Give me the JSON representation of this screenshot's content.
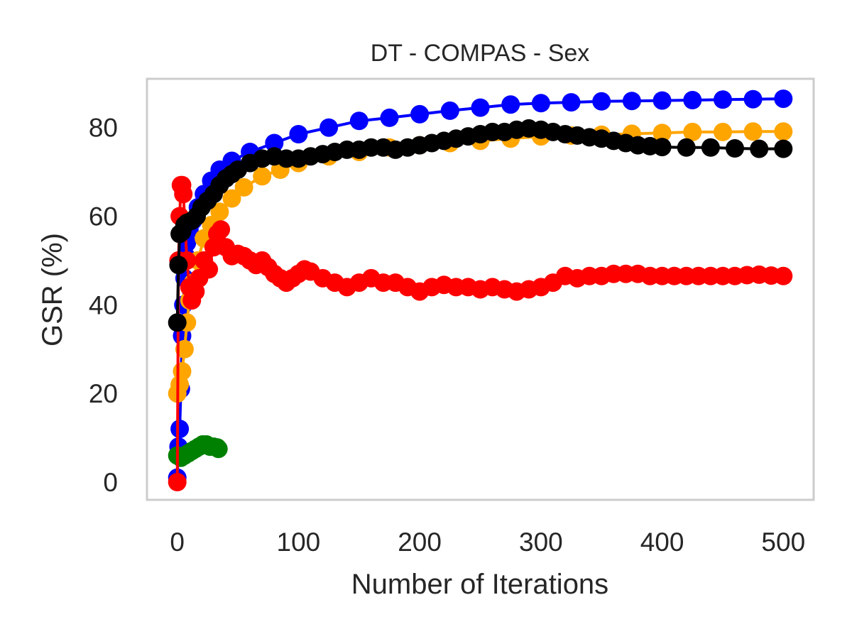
{
  "chart_data": {
    "type": "line",
    "title": "DT - COMPAS - Sex",
    "xlabel": "Number of Iterations",
    "ylabel": "GSR (%)",
    "xlim": [
      -25,
      525
    ],
    "ylim": [
      -4,
      91
    ],
    "xticks": [
      0,
      100,
      200,
      300,
      400,
      500
    ],
    "yticks": [
      0,
      20,
      40,
      60,
      80
    ],
    "grid": false,
    "legend": "none",
    "series": [
      {
        "color": "#0000ff",
        "points": [
          [
            0,
            1
          ],
          [
            1,
            8
          ],
          [
            2,
            12
          ],
          [
            3,
            21
          ],
          [
            4,
            33
          ],
          [
            5,
            40
          ],
          [
            6,
            46
          ],
          [
            7,
            51
          ],
          [
            8,
            54
          ],
          [
            10,
            57
          ],
          [
            13,
            59
          ],
          [
            17,
            62
          ],
          [
            22,
            65
          ],
          [
            28,
            68
          ],
          [
            35,
            70.5
          ],
          [
            45,
            72.5
          ],
          [
            60,
            74.5
          ],
          [
            80,
            76.5
          ],
          [
            100,
            78.5
          ],
          [
            125,
            80
          ],
          [
            150,
            81.5
          ],
          [
            175,
            82.2
          ],
          [
            200,
            83
          ],
          [
            225,
            83.8
          ],
          [
            250,
            84.5
          ],
          [
            275,
            85.2
          ],
          [
            300,
            85.5
          ],
          [
            325,
            85.7
          ],
          [
            350,
            85.9
          ],
          [
            375,
            86
          ],
          [
            400,
            86.1
          ],
          [
            425,
            86.2
          ],
          [
            450,
            86.3
          ],
          [
            475,
            86.4
          ],
          [
            500,
            86.5
          ]
        ]
      },
      {
        "color": "#ffa500",
        "points": [
          [
            0,
            20
          ],
          [
            2,
            22
          ],
          [
            4,
            25
          ],
          [
            6,
            30
          ],
          [
            8,
            36
          ],
          [
            10,
            41
          ],
          [
            13,
            45
          ],
          [
            17,
            50
          ],
          [
            22,
            55
          ],
          [
            28,
            58
          ],
          [
            35,
            61
          ],
          [
            45,
            64
          ],
          [
            55,
            66.5
          ],
          [
            70,
            69
          ],
          [
            85,
            70.5
          ],
          [
            100,
            72
          ],
          [
            125,
            73.5
          ],
          [
            150,
            74.5
          ],
          [
            175,
            75.5
          ],
          [
            200,
            76
          ],
          [
            225,
            76.5
          ],
          [
            250,
            77
          ],
          [
            275,
            77.5
          ],
          [
            300,
            78
          ],
          [
            325,
            78.2
          ],
          [
            350,
            78.4
          ],
          [
            375,
            78.6
          ],
          [
            400,
            78.8
          ],
          [
            425,
            79
          ],
          [
            450,
            79
          ],
          [
            475,
            79.1
          ],
          [
            500,
            79.1
          ]
        ]
      },
      {
        "color": "#008000",
        "points": [
          [
            0,
            6
          ],
          [
            3,
            5.5
          ],
          [
            6,
            6
          ],
          [
            9,
            6.5
          ],
          [
            12,
            7
          ],
          [
            15,
            7.5
          ],
          [
            18,
            8
          ],
          [
            21,
            8.5
          ],
          [
            24,
            8.5
          ],
          [
            27,
            8
          ],
          [
            30,
            8
          ],
          [
            33,
            7.8
          ],
          [
            34,
            7.5
          ]
        ]
      },
      {
        "color": "#ff0000",
        "points": [
          [
            0,
            0
          ],
          [
            1,
            50
          ],
          [
            2,
            60
          ],
          [
            3,
            67
          ],
          [
            4,
            67
          ],
          [
            5,
            65
          ],
          [
            8,
            50
          ],
          [
            10,
            44
          ],
          [
            12,
            41
          ],
          [
            15,
            43
          ],
          [
            18,
            46
          ],
          [
            22,
            50
          ],
          [
            26,
            48
          ],
          [
            30,
            53
          ],
          [
            33,
            56
          ],
          [
            36,
            57
          ],
          [
            40,
            53
          ],
          [
            45,
            51
          ],
          [
            50,
            51.5
          ],
          [
            55,
            51
          ],
          [
            60,
            50
          ],
          [
            65,
            49
          ],
          [
            70,
            50
          ],
          [
            75,
            48.5
          ],
          [
            80,
            47
          ],
          [
            85,
            46
          ],
          [
            90,
            45
          ],
          [
            95,
            46
          ],
          [
            100,
            47
          ],
          [
            105,
            48
          ],
          [
            110,
            47.5
          ],
          [
            120,
            46
          ],
          [
            130,
            45
          ],
          [
            140,
            44
          ],
          [
            150,
            45
          ],
          [
            160,
            46
          ],
          [
            170,
            45
          ],
          [
            180,
            45
          ],
          [
            190,
            44
          ],
          [
            200,
            43
          ],
          [
            210,
            44
          ],
          [
            220,
            44.5
          ],
          [
            230,
            44
          ],
          [
            240,
            44
          ],
          [
            250,
            43.5
          ],
          [
            260,
            44
          ],
          [
            270,
            43.5
          ],
          [
            280,
            43
          ],
          [
            290,
            43.5
          ],
          [
            300,
            44
          ],
          [
            310,
            45
          ],
          [
            320,
            46.5
          ],
          [
            330,
            46
          ],
          [
            340,
            46.5
          ],
          [
            350,
            46.5
          ],
          [
            360,
            47
          ],
          [
            370,
            47
          ],
          [
            380,
            47
          ],
          [
            390,
            46.5
          ],
          [
            400,
            46.5
          ],
          [
            410,
            46.5
          ],
          [
            420,
            46.5
          ],
          [
            430,
            46.5
          ],
          [
            440,
            46.5
          ],
          [
            450,
            46.5
          ],
          [
            460,
            46.5
          ],
          [
            470,
            46.7
          ],
          [
            480,
            46.8
          ],
          [
            490,
            46.6
          ],
          [
            500,
            46.5
          ]
        ]
      },
      {
        "color": "#000000",
        "points": [
          [
            0,
            36
          ],
          [
            1,
            49
          ],
          [
            2,
            56
          ],
          [
            4,
            56.5
          ],
          [
            6,
            58
          ],
          [
            8,
            58.5
          ],
          [
            12,
            59
          ],
          [
            16,
            60
          ],
          [
            20,
            62
          ],
          [
            25,
            63.5
          ],
          [
            30,
            65
          ],
          [
            35,
            67
          ],
          [
            40,
            68.5
          ],
          [
            45,
            69.5
          ],
          [
            50,
            70.5
          ],
          [
            60,
            72
          ],
          [
            70,
            73
          ],
          [
            80,
            73.5
          ],
          [
            90,
            73
          ],
          [
            100,
            73
          ],
          [
            110,
            73.5
          ],
          [
            120,
            74
          ],
          [
            130,
            74.5
          ],
          [
            140,
            75
          ],
          [
            150,
            75
          ],
          [
            160,
            75.5
          ],
          [
            170,
            75.5
          ],
          [
            180,
            75
          ],
          [
            190,
            75.5
          ],
          [
            200,
            76
          ],
          [
            210,
            76.5
          ],
          [
            220,
            77
          ],
          [
            230,
            77.5
          ],
          [
            240,
            78
          ],
          [
            250,
            78.5
          ],
          [
            260,
            79
          ],
          [
            270,
            79
          ],
          [
            280,
            79.5
          ],
          [
            290,
            79.8
          ],
          [
            300,
            79.5
          ],
          [
            310,
            79
          ],
          [
            320,
            78.5
          ],
          [
            330,
            78.2
          ],
          [
            340,
            77.8
          ],
          [
            350,
            77.5
          ],
          [
            360,
            77
          ],
          [
            370,
            76.5
          ],
          [
            380,
            76
          ],
          [
            390,
            75.8
          ],
          [
            400,
            75.6
          ],
          [
            420,
            75.5
          ],
          [
            440,
            75.5
          ],
          [
            460,
            75.3
          ],
          [
            480,
            75.2
          ],
          [
            500,
            75.2
          ]
        ]
      }
    ]
  }
}
